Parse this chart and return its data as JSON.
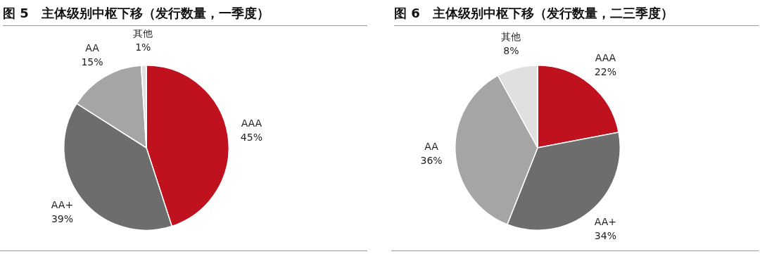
{
  "chart_data": [
    {
      "type": "pie",
      "title": "图 5　主体级别中枢下移（发行数量，一季度）",
      "categories": [
        "AAA",
        "AA+",
        "AA",
        "其他"
      ],
      "values": [
        45,
        39,
        15,
        1
      ],
      "value_labels": [
        "45%",
        "39%",
        "15%",
        "1%"
      ],
      "colors": [
        "#c0111f",
        "#6d6d6d",
        "#a5a5a5",
        "#e0e0e0"
      ],
      "legend": false
    },
    {
      "type": "pie",
      "title": "图 6　主体级别中枢下移（发行数量，二三季度）",
      "categories": [
        "AAA",
        "AA+",
        "AA",
        "其他"
      ],
      "values": [
        22,
        34,
        36,
        8
      ],
      "value_labels": [
        "22%",
        "34%",
        "36%",
        "8%"
      ],
      "colors": [
        "#c0111f",
        "#6d6d6d",
        "#a5a5a5",
        "#e0e0e0"
      ],
      "legend": false
    }
  ]
}
